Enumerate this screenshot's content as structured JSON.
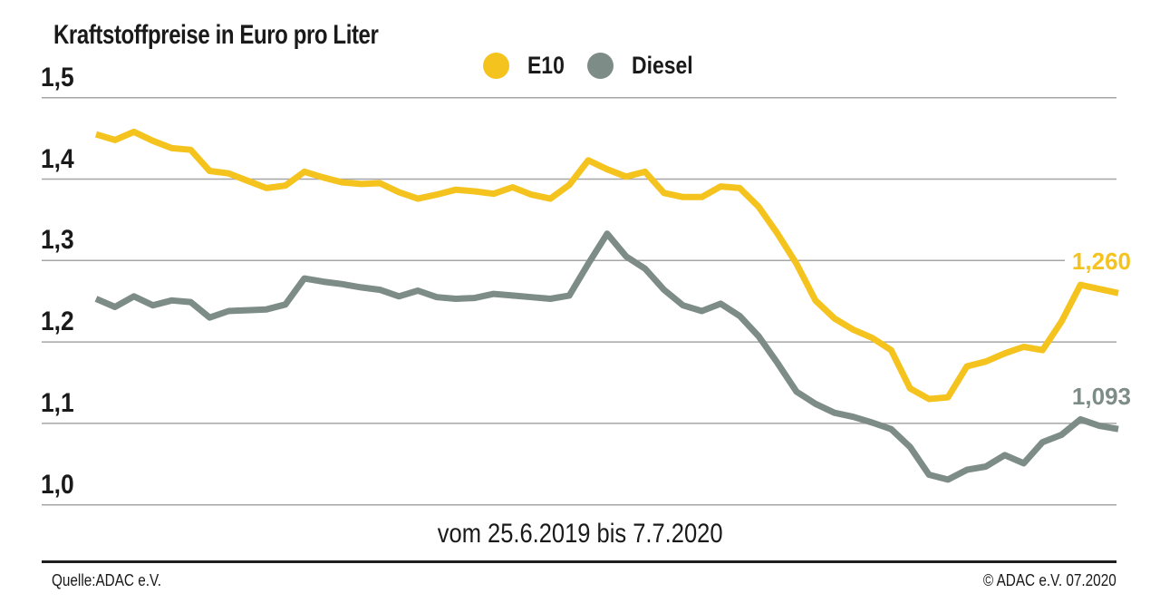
{
  "title": "Kraftstoffpreise in Euro pro Liter",
  "legend": {
    "items": [
      {
        "label": "E10",
        "color": "#F5C31E"
      },
      {
        "label": "Diesel",
        "color": "#7D8C86"
      }
    ]
  },
  "footer": {
    "source_left": "Quelle:ADAC e.V.",
    "source_right": "© ADAC e.V. 07.2020"
  },
  "chart_data": {
    "type": "line",
    "title": "Kraftstoffpreise in Euro pro Liter",
    "x_range_label": "vom 25.6.2019 bis 7.7.2020",
    "x_description": "55 weekly price points from 25.6.2019 to 7.7.2020 (no x tick labels shown)",
    "ylim": [
      1.0,
      1.5
    ],
    "y_ticks": [
      1.5,
      1.4,
      1.3,
      1.2,
      1.1,
      1.0
    ],
    "y_tick_labels": [
      "1,5",
      "1,4",
      "1,3",
      "1,2",
      "1,1",
      "1,0"
    ],
    "grid": "horizontal",
    "grid_color": "#A6A6A6",
    "legend_position": "top-center",
    "series": [
      {
        "name": "E10",
        "color": "#F5C31E",
        "end_label": "1,260",
        "final_value": 1.26,
        "values": [
          1.455,
          1.448,
          1.458,
          1.447,
          1.438,
          1.436,
          1.41,
          1.407,
          1.398,
          1.389,
          1.392,
          1.409,
          1.402,
          1.396,
          1.394,
          1.395,
          1.384,
          1.376,
          1.381,
          1.387,
          1.385,
          1.382,
          1.39,
          1.381,
          1.376,
          1.393,
          1.423,
          1.412,
          1.403,
          1.409,
          1.383,
          1.378,
          1.378,
          1.391,
          1.389,
          1.366,
          1.333,
          1.296,
          1.251,
          1.229,
          1.215,
          1.205,
          1.19,
          1.143,
          1.13,
          1.132,
          1.17,
          1.176,
          1.186,
          1.194,
          1.19,
          1.225,
          1.27,
          1.265,
          1.26
        ]
      },
      {
        "name": "Diesel",
        "color": "#7D8C86",
        "end_label": "1,093",
        "final_value": 1.093,
        "values": [
          1.253,
          1.243,
          1.256,
          1.245,
          1.251,
          1.249,
          1.23,
          1.238,
          1.239,
          1.24,
          1.246,
          1.278,
          1.274,
          1.271,
          1.267,
          1.264,
          1.256,
          1.263,
          1.255,
          1.253,
          1.254,
          1.259,
          1.257,
          1.255,
          1.253,
          1.257,
          1.296,
          1.333,
          1.305,
          1.29,
          1.264,
          1.245,
          1.238,
          1.247,
          1.232,
          1.207,
          1.174,
          1.139,
          1.124,
          1.113,
          1.108,
          1.101,
          1.093,
          1.071,
          1.037,
          1.031,
          1.043,
          1.047,
          1.061,
          1.051,
          1.077,
          1.086,
          1.105,
          1.097,
          1.093
        ]
      }
    ]
  }
}
